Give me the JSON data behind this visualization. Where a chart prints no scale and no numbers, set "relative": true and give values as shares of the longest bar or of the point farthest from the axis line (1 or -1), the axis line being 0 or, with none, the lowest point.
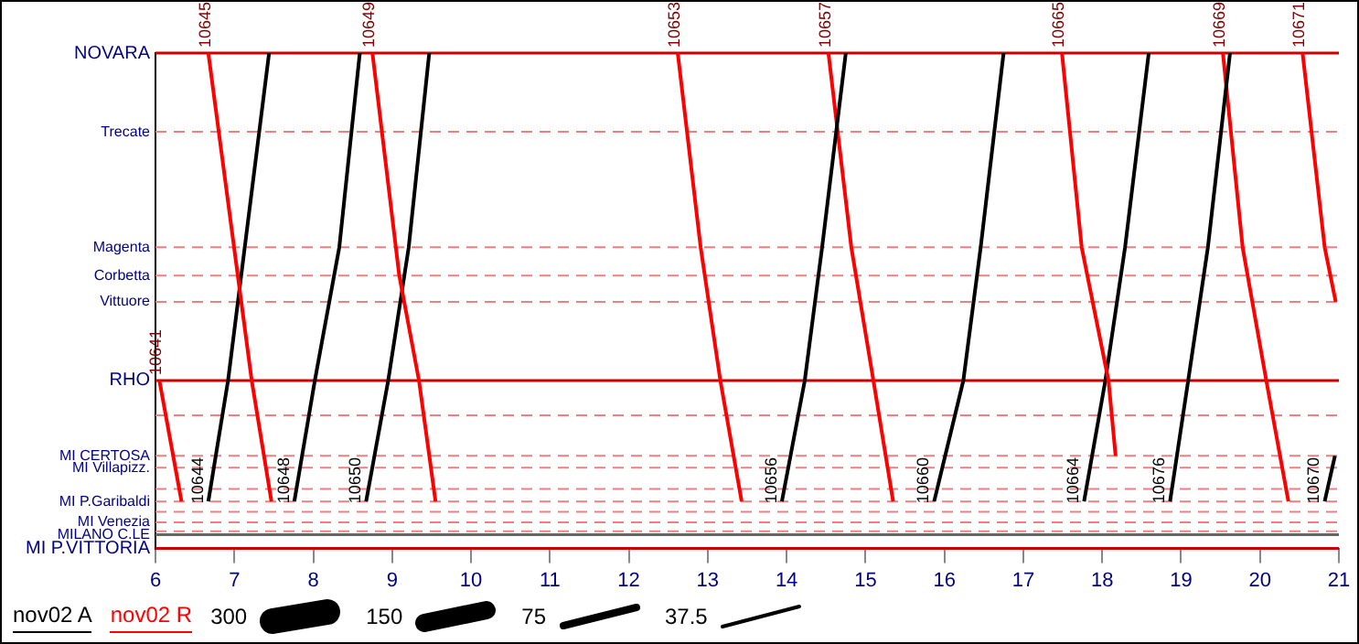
{
  "chart_data": {
    "type": "line",
    "relative": true,
    "xlim": [
      6,
      21
    ],
    "xticks": [
      6,
      7,
      8,
      9,
      10,
      11,
      12,
      13,
      14,
      15,
      16,
      17,
      18,
      19,
      20,
      21
    ],
    "line_style": "solid",
    "marker": "none",
    "ref_lines": [
      {
        "axis": "y",
        "value": 1,
        "label": "NOVARA",
        "color": "#cc0000",
        "line_style": "solid"
      },
      {
        "axis": "y",
        "value": 0.841,
        "label": "Trecate",
        "color": "#f08080",
        "line_style": "dashed"
      },
      {
        "axis": "y",
        "value": 0.608,
        "label": "Magenta",
        "color": "#f08080",
        "line_style": "dashed"
      },
      {
        "axis": "y",
        "value": 0.551,
        "label": "Corbetta",
        "color": "#f08080",
        "line_style": "dashed"
      },
      {
        "axis": "y",
        "value": 0.498,
        "label": "Vittuore",
        "color": "#f08080",
        "line_style": "dashed"
      },
      {
        "axis": "y",
        "value": 0.339,
        "label": "RHO",
        "color": "#cc0000",
        "line_style": "solid"
      },
      {
        "axis": "y",
        "value": 0.269,
        "color": "#f08080",
        "line_style": "dashed"
      },
      {
        "axis": "y",
        "value": 0.187,
        "label": "MI CERTOSA",
        "color": "#f08080",
        "line_style": "dashed"
      },
      {
        "axis": "y",
        "value": 0.163,
        "label": "MI Villapizz.",
        "color": "#f08080",
        "line_style": "dashed"
      },
      {
        "axis": "y",
        "value": 0.12,
        "color": "#f08080",
        "line_style": "dashed"
      },
      {
        "axis": "y",
        "value": 0.095,
        "label": "MI P.Garibaldi",
        "color": "#f08080",
        "line_style": "dashed"
      },
      {
        "axis": "y",
        "value": 0.074,
        "color": "#f08080",
        "line_style": "dashed"
      },
      {
        "axis": "y",
        "value": 0.053,
        "label": "MI Venezia",
        "color": "#f08080",
        "line_style": "dashed"
      },
      {
        "axis": "y",
        "value": 0.035,
        "color": "#f08080",
        "line_style": "dashed"
      },
      {
        "axis": "y",
        "value": 0.028,
        "label": "MILANO C.LE",
        "color": "#666666",
        "line_style": "solid"
      },
      {
        "axis": "y",
        "value": 0,
        "label": "MI P.VITTORIA",
        "color": "#cc0000",
        "line_style": "solid"
      }
    ],
    "annotations": [
      "nov02 A",
      "nov02 R",
      "300",
      "150",
      "75",
      "37.5"
    ],
    "series": [
      {
        "name": "10641",
        "color": "#ff0000",
        "x": [
          6.05,
          6.33
        ],
        "values": [
          0.339,
          0.095
        ]
      },
      {
        "name": "10645",
        "color": "#ff0000",
        "x": [
          6.67,
          7.22,
          7.47
        ],
        "values": [
          1,
          0.339,
          0.095
        ]
      },
      {
        "name": "10644",
        "color": "#000000",
        "x": [
          6.67,
          6.92,
          7.44
        ],
        "values": [
          0.095,
          0.339,
          1
        ]
      },
      {
        "name": "10648",
        "color": "#000000",
        "x": [
          7.76,
          8.02,
          8.33,
          8.59
        ],
        "values": [
          0.095,
          0.339,
          0.608,
          1
        ]
      },
      {
        "name": "10649",
        "color": "#ff0000",
        "x": [
          8.75,
          9.09,
          9.34,
          9.55
        ],
        "values": [
          1,
          0.551,
          0.339,
          0.095
        ]
      },
      {
        "name": "10650",
        "color": "#000000",
        "x": [
          8.67,
          8.95,
          9.21,
          9.47
        ],
        "values": [
          0.095,
          0.339,
          0.608,
          1
        ]
      },
      {
        "name": "10653",
        "color": "#ff0000",
        "x": [
          12.62,
          12.91,
          13.16,
          13.43
        ],
        "values": [
          1,
          0.608,
          0.339,
          0.095
        ]
      },
      {
        "name": "10656",
        "color": "#000000",
        "x": [
          13.94,
          14.23,
          14.45,
          14.75
        ],
        "values": [
          0.095,
          0.339,
          0.608,
          1
        ]
      },
      {
        "name": "10657",
        "color": "#ff0000",
        "x": [
          14.53,
          14.82,
          15.1,
          15.35
        ],
        "values": [
          1,
          0.608,
          0.339,
          0.095
        ]
      },
      {
        "name": "10660",
        "color": "#000000",
        "x": [
          15.87,
          16.24,
          16.46,
          16.75
        ],
        "values": [
          0.095,
          0.339,
          0.608,
          1
        ]
      },
      {
        "name": "10665",
        "color": "#ff0000",
        "x": [
          17.49,
          17.74,
          18.08,
          18.17
        ],
        "values": [
          1,
          0.608,
          0.339,
          0.187
        ]
      },
      {
        "name": "10664",
        "color": "#000000",
        "x": [
          17.77,
          18.04,
          18.29,
          18.59
        ],
        "values": [
          0.095,
          0.339,
          0.608,
          1
        ]
      },
      {
        "name": "10676",
        "color": "#000000",
        "x": [
          18.86,
          19.09,
          19.34,
          19.62
        ],
        "values": [
          0.095,
          0.339,
          0.608,
          1
        ]
      },
      {
        "name": "10669",
        "color": "#ff0000",
        "x": [
          19.53,
          19.78,
          20.08,
          20.36
        ],
        "values": [
          1,
          0.608,
          0.339,
          0.095
        ]
      },
      {
        "name": "10671",
        "color": "#ff0000",
        "x": [
          20.54,
          20.82,
          20.96
        ],
        "values": [
          1,
          0.608,
          0.498
        ]
      },
      {
        "name": "10670",
        "color": "#000000",
        "x": [
          20.82,
          20.95
        ],
        "values": [
          0.095,
          0.187
        ]
      }
    ]
  }
}
